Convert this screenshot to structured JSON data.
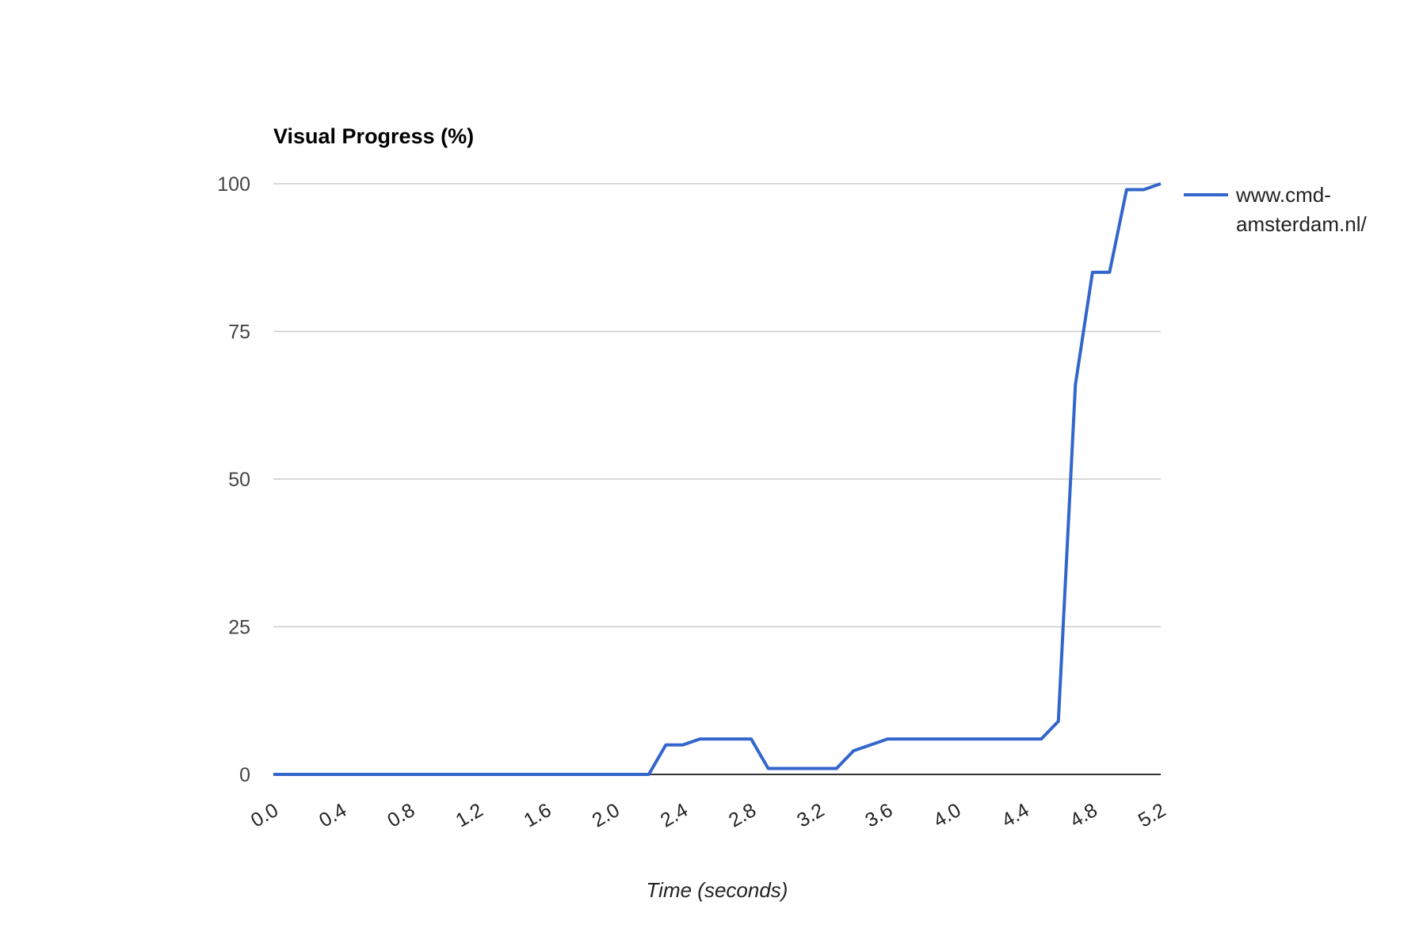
{
  "chart_data": {
    "type": "line",
    "title": "Visual Progress (%)",
    "xlabel": "Time (seconds)",
    "ylabel": "",
    "xlim": [
      0.0,
      5.2
    ],
    "ylim": [
      0,
      100
    ],
    "x_ticks": [
      "0.0",
      "0.4",
      "0.8",
      "1.2",
      "1.6",
      "2.0",
      "2.4",
      "2.8",
      "3.2",
      "3.6",
      "4.0",
      "4.4",
      "4.8",
      "5.2"
    ],
    "y_ticks": [
      "0",
      "25",
      "50",
      "75",
      "100"
    ],
    "grid": true,
    "legend_position": "right",
    "series": [
      {
        "name": "www.cmd-amsterdam.nl/",
        "legend_lines": [
          "www.cmd-",
          "amsterdam.nl/"
        ],
        "color": "#3366cc",
        "points": [
          [
            0.0,
            0
          ],
          [
            2.2,
            0
          ],
          [
            2.3,
            5
          ],
          [
            2.4,
            5
          ],
          [
            2.5,
            6
          ],
          [
            2.8,
            6
          ],
          [
            2.9,
            1
          ],
          [
            3.3,
            1
          ],
          [
            3.4,
            4
          ],
          [
            3.6,
            6
          ],
          [
            4.5,
            6
          ],
          [
            4.6,
            9
          ],
          [
            4.7,
            66
          ],
          [
            4.8,
            85
          ],
          [
            4.9,
            85
          ],
          [
            5.0,
            99
          ],
          [
            5.1,
            99
          ],
          [
            5.2,
            100
          ]
        ]
      }
    ]
  }
}
